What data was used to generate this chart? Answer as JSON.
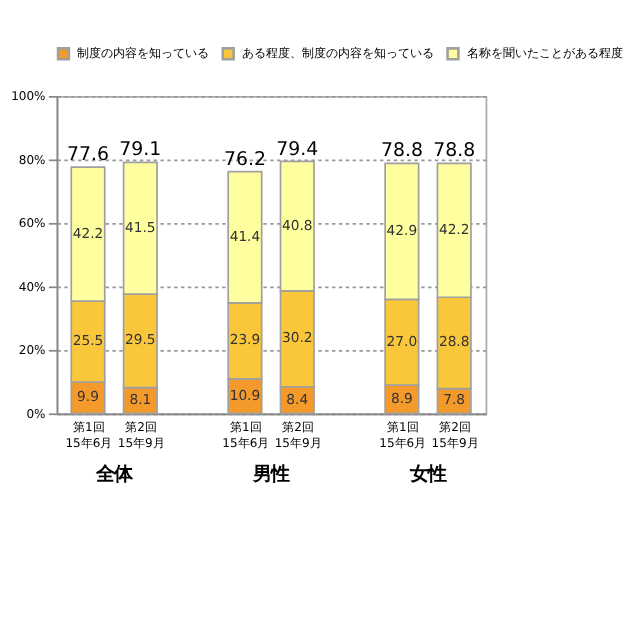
{
  "chart_data": {
    "type": "bar",
    "stacked": true,
    "categories": [
      "第1回\n15年6月",
      "第2回\n15年9月",
      null,
      "第1回\n15年6月",
      "第2回\n15年9月",
      null,
      "第1回\n15年6月",
      "第2回\n15年9月"
    ],
    "series": [
      {
        "name": "制度の内容を知っている",
        "color": "#f39a2b",
        "values": [
          9.9,
          8.1,
          null,
          10.9,
          8.4,
          null,
          8.9,
          7.8
        ],
        "value_labels": [
          "9.9",
          "8.1",
          null,
          "10.9",
          "8.4",
          null,
          "8.9",
          "7.8"
        ]
      },
      {
        "name": "ある程度、制度の内容を知っている",
        "color": "#fbc73a",
        "values": [
          25.5,
          29.5,
          null,
          23.9,
          30.2,
          null,
          27.0,
          28.8
        ],
        "value_labels": [
          "25.5",
          "29.5",
          null,
          "23.9",
          "30.2",
          null,
          "27.0",
          "28.8"
        ]
      },
      {
        "name": "名称を聞いたことがある程度",
        "color": "#ffffa0",
        "values": [
          42.2,
          41.5,
          null,
          41.4,
          40.8,
          null,
          42.9,
          42.2
        ],
        "value_labels": [
          "42.2",
          "41.5",
          null,
          "41.4",
          "40.8",
          null,
          "42.9",
          "42.2"
        ]
      }
    ],
    "totals": [
      "77.6",
      "79.1",
      null,
      "76.2",
      "79.4",
      null,
      "78.8",
      "78.8"
    ],
    "annotations": [
      "全体",
      "男性",
      "女性"
    ],
    "ylim": [
      0,
      100
    ],
    "yticks": [
      {
        "value": 0,
        "label": "0%"
      },
      {
        "value": 20,
        "label": "20%"
      },
      {
        "value": 40,
        "label": "40%"
      },
      {
        "value": 60,
        "label": "60%"
      },
      {
        "value": 80,
        "label": "80%"
      },
      {
        "value": 100,
        "label": "100%"
      }
    ],
    "grid": "y",
    "legend": "top"
  }
}
